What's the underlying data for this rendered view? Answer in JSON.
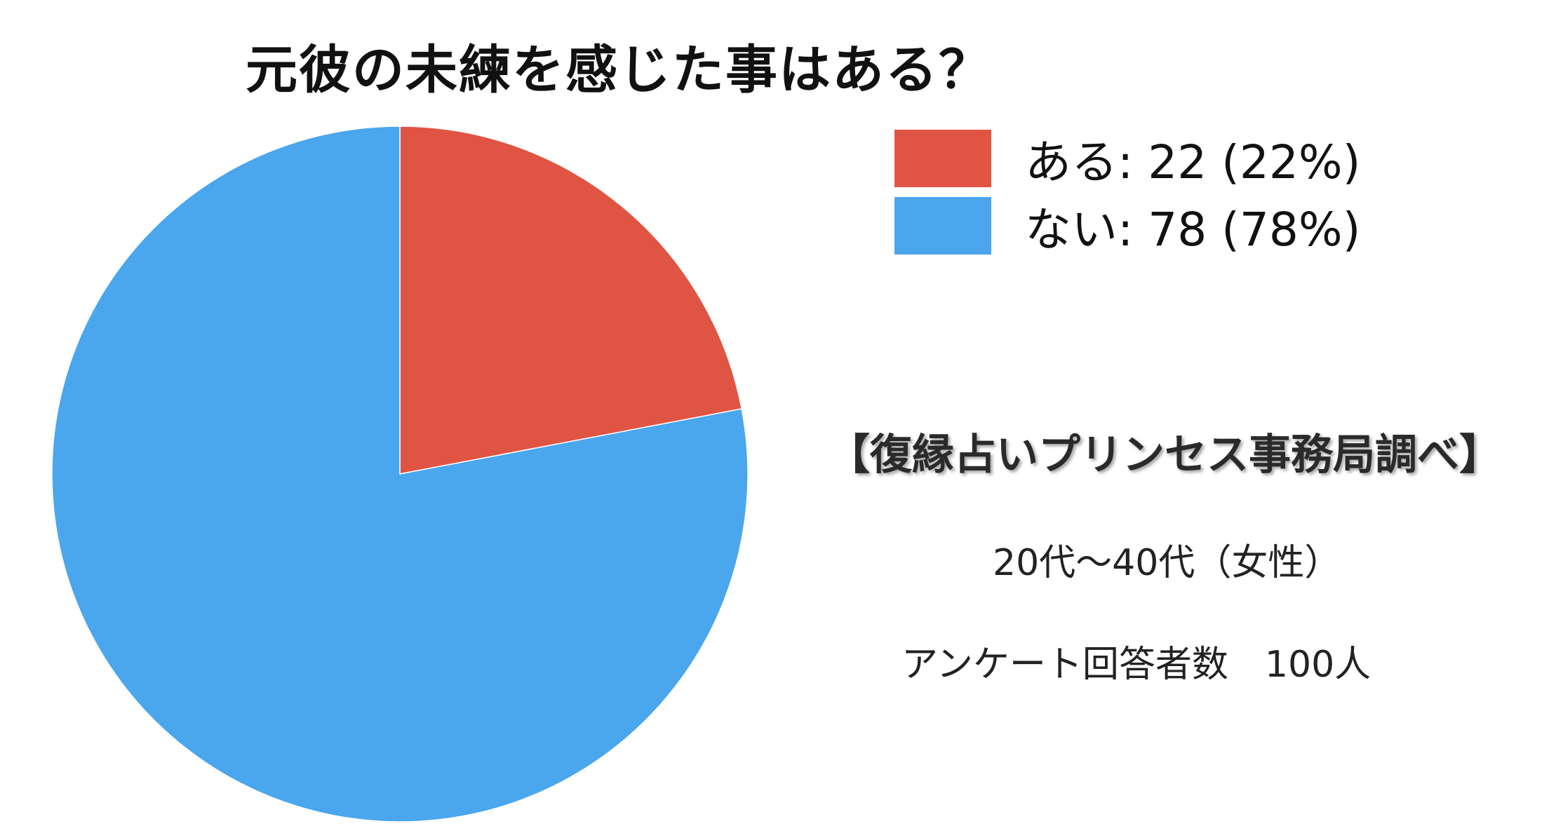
{
  "chart_data": {
    "type": "pie",
    "title": "元彼の未練を感じた事はある？",
    "slices": [
      {
        "label": "ある",
        "value": 22,
        "percent": 22,
        "color": "#e05444",
        "legend_text": "ある: 22 (22%)"
      },
      {
        "label": "ない",
        "value": 78,
        "percent": 78,
        "color": "#4aa6ed",
        "legend_text": "ない: 78 (78%)"
      }
    ],
    "legend_position": "top-right"
  },
  "annotations": {
    "source": "【復縁占いプリンセス事務局調べ】",
    "demographic": "20代〜40代（女性）",
    "respondents": "アンケート回答者数　100人"
  }
}
